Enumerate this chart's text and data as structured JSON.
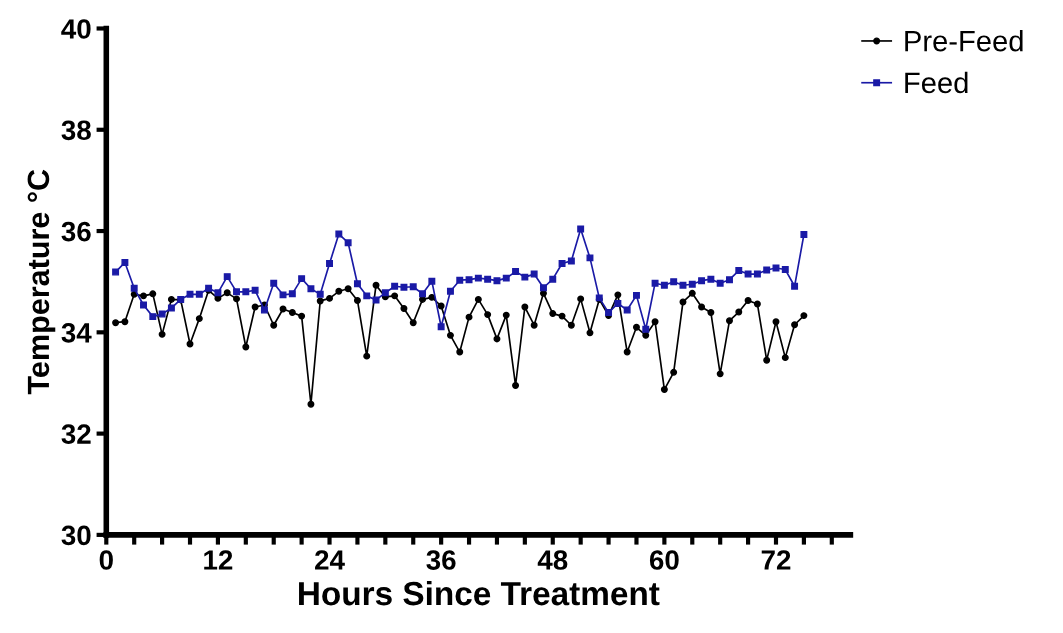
{
  "chart_data": {
    "type": "line",
    "xlabel": "Hours Since Treatment",
    "ylabel": "Temperature °C",
    "x": [
      1,
      2,
      3,
      4,
      5,
      6,
      7,
      8,
      9,
      10,
      11,
      12,
      13,
      14,
      15,
      16,
      17,
      18,
      19,
      20,
      21,
      22,
      23,
      24,
      25,
      26,
      27,
      28,
      29,
      30,
      31,
      32,
      33,
      34,
      35,
      36,
      37,
      38,
      39,
      40,
      41,
      42,
      43,
      44,
      45,
      46,
      47,
      48,
      49,
      50,
      51,
      52,
      53,
      54,
      55,
      56,
      57,
      58,
      59,
      60,
      61,
      62,
      63,
      64,
      65,
      66,
      67,
      68,
      69,
      70,
      71,
      72,
      73,
      74,
      75
    ],
    "series": [
      {
        "name": "Pre-Feed",
        "color": "#000000",
        "marker": "circle",
        "values": [
          34.19,
          34.21,
          34.75,
          34.72,
          34.76,
          33.96,
          34.65,
          34.64,
          33.77,
          34.27,
          34.83,
          34.67,
          34.78,
          34.66,
          33.71,
          34.5,
          34.54,
          34.14,
          34.46,
          34.39,
          34.32,
          32.58,
          34.62,
          34.67,
          34.81,
          34.86,
          34.63,
          33.53,
          34.93,
          34.7,
          34.72,
          34.47,
          34.19,
          34.65,
          34.69,
          34.52,
          33.94,
          33.61,
          34.3,
          34.65,
          34.35,
          33.87,
          34.34,
          32.95,
          34.5,
          34.14,
          34.77,
          34.37,
          34.32,
          34.14,
          34.66,
          33.99,
          34.65,
          34.33,
          34.74,
          33.61,
          34.1,
          33.94,
          34.21,
          32.87,
          33.21,
          34.6,
          34.77,
          34.5,
          34.39,
          33.18,
          34.23,
          34.4,
          34.63,
          34.56,
          33.45,
          34.21,
          33.5,
          34.15,
          34.33
        ]
      },
      {
        "name": "Feed",
        "color": "#1a1aa6",
        "marker": "square",
        "values": [
          35.19,
          35.38,
          34.87,
          34.54,
          34.31,
          34.36,
          34.48,
          34.65,
          34.75,
          34.75,
          34.87,
          34.78,
          35.1,
          34.8,
          34.8,
          34.83,
          34.44,
          34.97,
          34.74,
          34.76,
          35.06,
          34.86,
          34.75,
          35.36,
          35.94,
          35.77,
          34.96,
          34.72,
          34.64,
          34.78,
          34.91,
          34.89,
          34.9,
          34.76,
          35.01,
          34.11,
          34.81,
          35.03,
          35.04,
          35.07,
          35.05,
          35.02,
          35.07,
          35.2,
          35.09,
          35.15,
          34.88,
          35.05,
          35.36,
          35.41,
          36.04,
          35.47,
          34.68,
          34.39,
          34.57,
          34.44,
          34.73,
          34.06,
          34.97,
          34.93,
          35.0,
          34.93,
          34.95,
          35.02,
          35.05,
          34.97,
          35.04,
          35.22,
          35.15,
          35.15,
          35.23,
          35.27,
          35.24,
          34.91,
          35.93
        ]
      }
    ],
    "xlim": [
      0,
      80
    ],
    "xticks": [
      0,
      {
        "value": 3,
        "label": null
      },
      {
        "value": 6,
        "label": null
      },
      {
        "value": 9,
        "label": null
      },
      12,
      {
        "value": 15,
        "label": null
      },
      {
        "value": 18,
        "label": null
      },
      {
        "value": 21,
        "label": null
      },
      24,
      {
        "value": 27,
        "label": null
      },
      {
        "value": 30,
        "label": null
      },
      {
        "value": 33,
        "label": null
      },
      36,
      {
        "value": 39,
        "label": null
      },
      {
        "value": 42,
        "label": null
      },
      {
        "value": 45,
        "label": null
      },
      48,
      {
        "value": 51,
        "label": null
      },
      {
        "value": 54,
        "label": null
      },
      {
        "value": 57,
        "label": null
      },
      60,
      {
        "value": 63,
        "label": null
      },
      {
        "value": 66,
        "label": null
      },
      {
        "value": 69,
        "label": null
      },
      72,
      {
        "value": 75,
        "label": null
      },
      {
        "value": 78,
        "label": null
      }
    ],
    "ylim": [
      30,
      40
    ],
    "yticks": [
      30,
      32,
      34,
      36,
      38,
      40
    ],
    "grid": false,
    "legend": "top right",
    "line_style": "solid"
  }
}
